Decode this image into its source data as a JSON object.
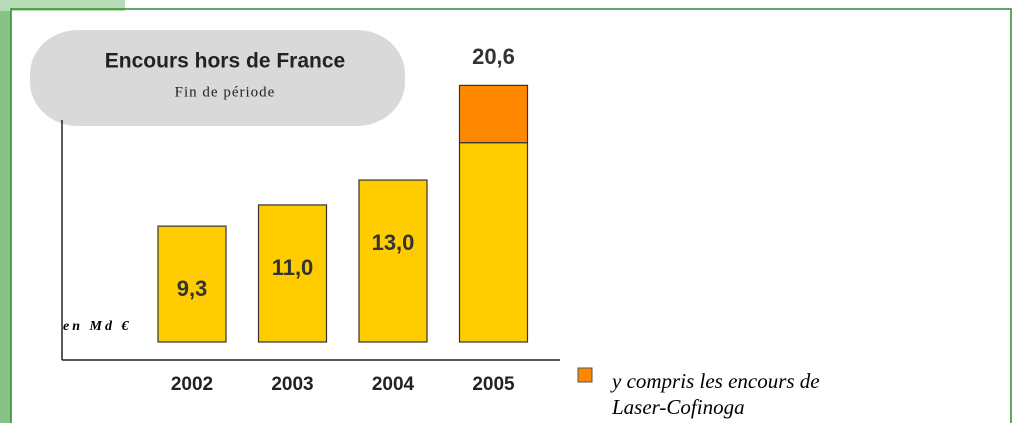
{
  "chart_data": {
    "type": "stacked-bar",
    "title": "Encours hors de France",
    "subtitle": "Fin de période",
    "unit_label": "en Md €",
    "categories": [
      "2002",
      "2003",
      "2004",
      "2005"
    ],
    "series": [
      {
        "color": "#ffcc00",
        "values": [
          9.3,
          11.0,
          13.0,
          16.0
        ],
        "value_labels": [
          "9,3",
          "11,0",
          "13,0",
          null
        ]
      },
      {
        "name": "y compris les encours de Laser-Cofinoga",
        "color": "#ff8800",
        "values": [
          null,
          null,
          null,
          4.6
        ]
      }
    ],
    "totals": [
      null,
      null,
      null,
      20.6
    ],
    "total_labels": [
      null,
      null,
      null,
      "20,6"
    ],
    "ylim": [
      0,
      24
    ]
  }
}
